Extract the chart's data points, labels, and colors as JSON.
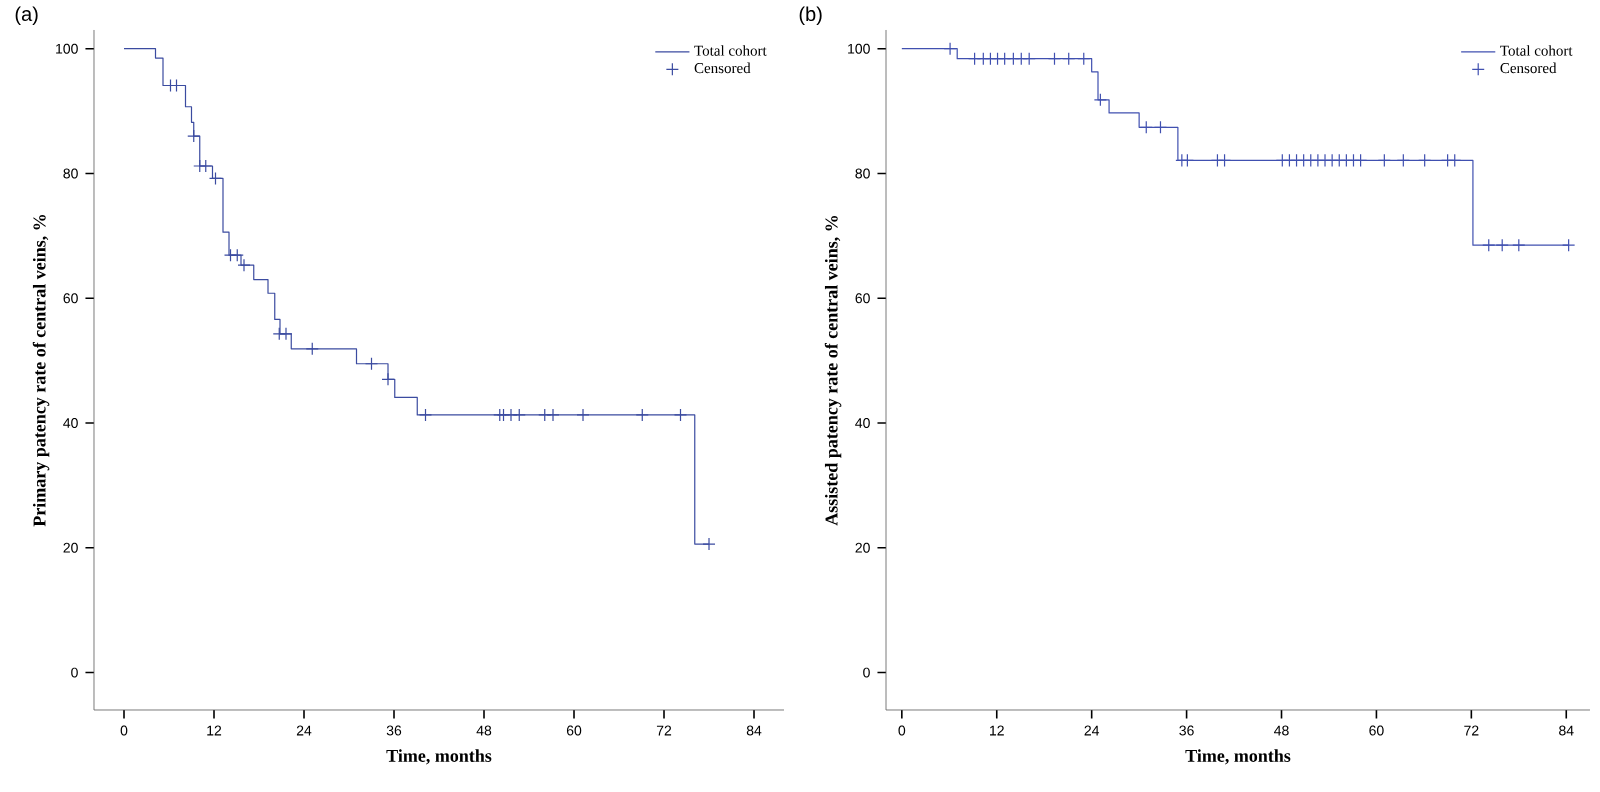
{
  "chart_data": [
    {
      "type": "step",
      "title": "(a)",
      "xlabel": "Time, months",
      "ylabel": "Primary patency rate of central veins, %",
      "xlim": [
        -4,
        88
      ],
      "ylim": [
        -6,
        103
      ],
      "xticks": [
        0,
        12,
        24,
        36,
        48,
        60,
        72,
        84
      ],
      "yticks": [
        0,
        20,
        40,
        60,
        80,
        100
      ],
      "legend": "top right",
      "series": [
        {
          "name": "Total cohort",
          "color": "#3b4ba0",
          "marker": "none",
          "x": [
            0,
            4.2,
            5.2,
            8.2,
            9.0,
            9.3,
            10.1,
            11.8,
            13.2,
            14.0,
            15.6,
            17.3,
            19.2,
            20.1,
            20.8,
            22.3,
            31.0,
            35.2,
            36.1,
            39.1,
            76.1,
            78.0
          ],
          "values": [
            100,
            98.5,
            94.1,
            90.7,
            88.2,
            86.0,
            81.2,
            79.2,
            70.6,
            66.9,
            65.3,
            63.0,
            60.8,
            56.6,
            54.3,
            51.9,
            49.5,
            47.0,
            44.1,
            41.3,
            20.6,
            20.6
          ]
        },
        {
          "name": "Censored",
          "type": "scatter",
          "color": "#3b4ba0",
          "marker": "cross",
          "x": [
            6.2,
            7.0,
            9.3,
            10.1,
            10.9,
            12.2,
            14.2,
            15.1,
            16.0,
            20.7,
            21.6,
            25.1,
            33.0,
            35.2,
            40.2,
            50.1,
            50.6,
            51.6,
            52.7,
            56.1,
            57.2,
            61.2,
            69.1,
            74.2,
            78.0
          ],
          "values": [
            94.1,
            94.1,
            86.0,
            81.2,
            81.2,
            79.2,
            66.9,
            66.9,
            65.3,
            54.3,
            54.3,
            51.9,
            49.5,
            47.0,
            41.3,
            41.3,
            41.3,
            41.3,
            41.3,
            41.3,
            41.3,
            41.3,
            41.3,
            41.3,
            20.6
          ]
        }
      ]
    },
    {
      "type": "step",
      "title": "(b)",
      "xlabel": "Time, months",
      "ylabel": "Assisted patency rate of central veins, %",
      "xlim": [
        -2,
        87
      ],
      "ylim": [
        -6,
        103
      ],
      "xticks": [
        0,
        12,
        24,
        36,
        48,
        60,
        72,
        84
      ],
      "yticks": [
        0,
        20,
        40,
        60,
        80,
        100
      ],
      "legend": "top right",
      "series": [
        {
          "name": "Total cohort",
          "color": "#4050b0",
          "marker": "none",
          "x": [
            0,
            7.0,
            24.0,
            24.8,
            26.2,
            30.0,
            34.9,
            72.2,
            84.3
          ],
          "values": [
            100,
            98.4,
            96.3,
            91.8,
            89.7,
            87.4,
            82.1,
            68.5,
            68.5
          ]
        },
        {
          "name": "Censored",
          "type": "scatter",
          "color": "#4050b0",
          "marker": "cross",
          "x": [
            6.1,
            9.2,
            10.3,
            11.2,
            12.1,
            13.0,
            14.1,
            15.1,
            16.1,
            19.3,
            21.1,
            23.0,
            25.1,
            30.9,
            32.7,
            35.4,
            36.1,
            39.9,
            40.8,
            48.1,
            49.0,
            49.9,
            50.8,
            51.7,
            52.6,
            53.5,
            54.4,
            55.3,
            56.2,
            57.1,
            58.0,
            61.0,
            63.4,
            66.1,
            69.0,
            69.9,
            74.2,
            75.9,
            78.0,
            84.3
          ],
          "values": [
            100,
            98.4,
            98.4,
            98.4,
            98.4,
            98.4,
            98.4,
            98.4,
            98.4,
            98.4,
            98.4,
            98.4,
            91.8,
            87.4,
            87.4,
            82.1,
            82.1,
            82.1,
            82.1,
            82.1,
            82.1,
            82.1,
            82.1,
            82.1,
            82.1,
            82.1,
            82.1,
            82.1,
            82.1,
            82.1,
            82.1,
            82.1,
            82.1,
            82.1,
            82.1,
            82.1,
            68.5,
            68.5,
            68.5,
            68.5
          ]
        }
      ]
    }
  ]
}
